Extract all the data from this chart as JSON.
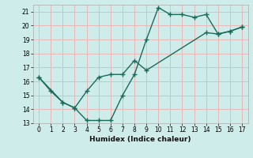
{
  "xlabel": "Humidex (Indice chaleur)",
  "background_color": "#ceecea",
  "grid_color": "#e8b8b8",
  "line_color": "#1a6b5a",
  "series1_x": [
    0,
    1,
    2,
    3,
    4,
    5,
    6,
    7,
    8,
    9,
    10,
    11,
    12,
    13,
    14,
    15,
    16,
    17
  ],
  "series1_y": [
    16.3,
    15.3,
    14.5,
    14.1,
    13.2,
    13.2,
    13.2,
    15.0,
    16.5,
    19.0,
    21.3,
    20.8,
    20.8,
    20.6,
    20.8,
    19.4,
    19.6,
    19.9
  ],
  "series2_x": [
    0,
    2,
    3,
    4,
    5,
    6,
    7,
    8,
    9,
    14,
    15,
    16,
    17
  ],
  "series2_y": [
    16.3,
    14.5,
    14.1,
    15.3,
    16.3,
    16.5,
    16.5,
    17.5,
    16.8,
    19.5,
    19.4,
    19.6,
    19.9
  ],
  "xlim": [
    -0.5,
    17.5
  ],
  "ylim": [
    13,
    21.5
  ],
  "xticks": [
    0,
    1,
    2,
    3,
    4,
    5,
    6,
    7,
    8,
    9,
    10,
    11,
    12,
    13,
    14,
    15,
    16,
    17
  ],
  "yticks": [
    13,
    14,
    15,
    16,
    17,
    18,
    19,
    20,
    21
  ]
}
